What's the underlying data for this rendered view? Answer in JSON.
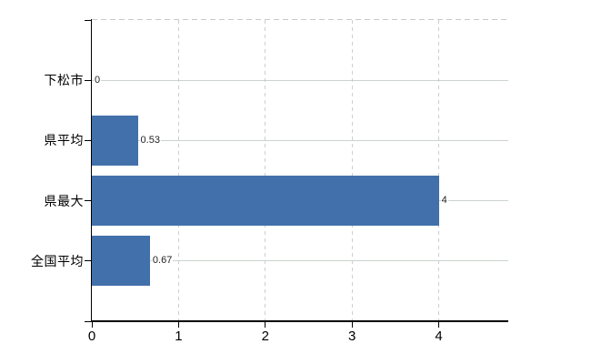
{
  "chart_data": {
    "type": "bar",
    "orientation": "horizontal",
    "title": "",
    "categories": [
      "下松市",
      "県平均",
      "県最大",
      "全国平均"
    ],
    "values": [
      0,
      0.53,
      4,
      0.67
    ],
    "data_labels": [
      "0",
      "0.53",
      "4",
      "0.67"
    ],
    "series": [
      {
        "name": "",
        "values": [
          0,
          0.53,
          4,
          0.67
        ]
      }
    ],
    "x_ticks": [
      "0",
      "1",
      "2",
      "3",
      "4"
    ],
    "x_tick_values": [
      0,
      1,
      2,
      3,
      4
    ],
    "xlim": [
      0,
      4.8
    ],
    "xlabel": "",
    "ylabel": "",
    "grid": true,
    "legend": false,
    "colors": {
      "bar": "#4270ab",
      "axis": "#000000",
      "h_gridline": "#ccd3cc",
      "v_gridline": "#cdcdd5",
      "plot_top_border": "#c9c9c9",
      "tick_label": "#000000",
      "data_label": "#222222",
      "background": "#ffffff"
    }
  }
}
